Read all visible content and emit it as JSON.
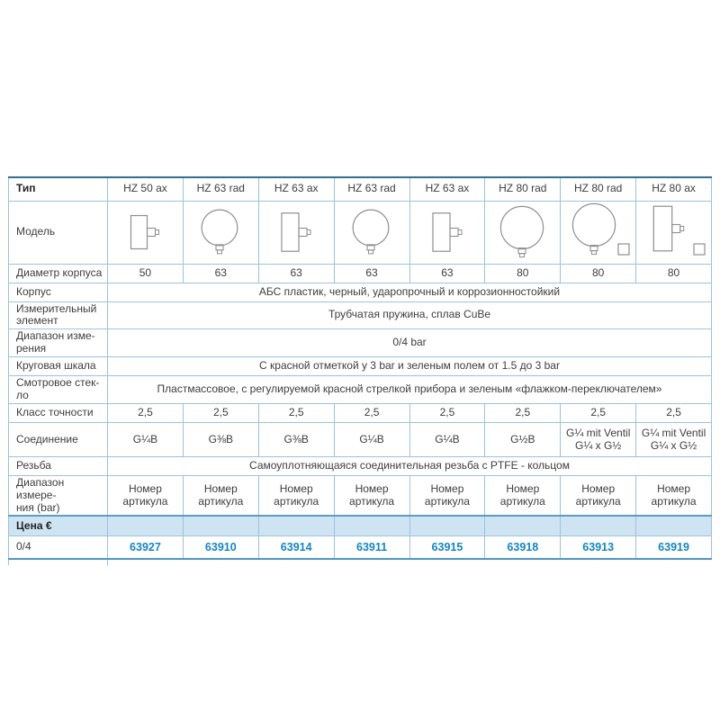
{
  "colors": {
    "border_light": "#9dc2da",
    "border_top": "#2e7191",
    "border_strong": "#4f95c3",
    "price_row_bg": "#cfe4f3",
    "article_blue": "#1385c6",
    "text": "#3d3d3d",
    "icon_stroke": "#8f8f8f"
  },
  "table": {
    "type_row": {
      "label": "Тип",
      "columns": [
        "HZ 50 ax",
        "HZ 63 rad",
        "HZ 63 ax",
        "HZ 63 rad",
        "HZ 63 ax",
        "HZ 80 rad",
        "HZ 80 rad",
        "HZ 80 ax"
      ]
    },
    "model_row": {
      "label": "Модель",
      "icons": [
        "gauge-axial-icon",
        "gauge-radial-icon",
        "gauge-axial-icon",
        "gauge-radial-icon",
        "gauge-axial-icon",
        "gauge-radial-icon",
        "gauge-radial-valve-icon",
        "gauge-axial-valve-icon"
      ]
    },
    "diameter_row": {
      "label": "Диаметр корпуса",
      "values": [
        "50",
        "63",
        "63",
        "63",
        "63",
        "80",
        "80",
        "80"
      ]
    },
    "body_row": {
      "label": "Корпус",
      "value": "АБС пластик, черный, ударопрочный и коррозионностойкий"
    },
    "element_row": {
      "label": "Измерительный\nэлемент",
      "value": "Трубчатая пружина, сплав CuBe"
    },
    "range_row": {
      "label": "Диапазон изме-\nрения",
      "value": "0/4 bar"
    },
    "dial_row": {
      "label": "Круговая шкала",
      "value": "С красной отметкой у 3 bar и зеленым полем от 1.5 до 3 bar"
    },
    "window_row": {
      "label": "Смотровое стек-\nло",
      "value": "Пластмассовое, с регулируемой красной стрелкой прибора и зеленым «флажком-переключателем»"
    },
    "accuracy_row": {
      "label": "Класс точности",
      "values": [
        "2,5",
        "2,5",
        "2,5",
        "2,5",
        "2,5",
        "2,5",
        "2,5",
        "2,5"
      ]
    },
    "connection_row": {
      "label": "Соединение",
      "values": [
        "G¼B",
        "G⅜B",
        "G⅜B",
        "G¼B",
        "G¼B",
        "G½B",
        "G¼ mit Ventil\nG¼ x G½",
        "G¼ mit Ventil\nG¼ x G½"
      ]
    },
    "thread_row": {
      "label": "Резьба",
      "value": "Самоуплотняющаяся соединительная резьба с PTFE - кольцом"
    },
    "article_header_row": {
      "label": "Диапазон измере-\nния (bar)",
      "values": [
        "Номер\nартикула",
        "Номер\nартикула",
        "Номер\nартикула",
        "Номер\nартикула",
        "Номер\nартикула",
        "Номер\nартикула",
        "Номер\nартикула",
        "Номер\nартикула"
      ]
    },
    "price_row": {
      "label": "Цена €"
    },
    "order_row": {
      "label": "0/4",
      "values": [
        "63927",
        "63910",
        "63914",
        "63911",
        "63915",
        "63918",
        "63913",
        "63919"
      ]
    }
  }
}
